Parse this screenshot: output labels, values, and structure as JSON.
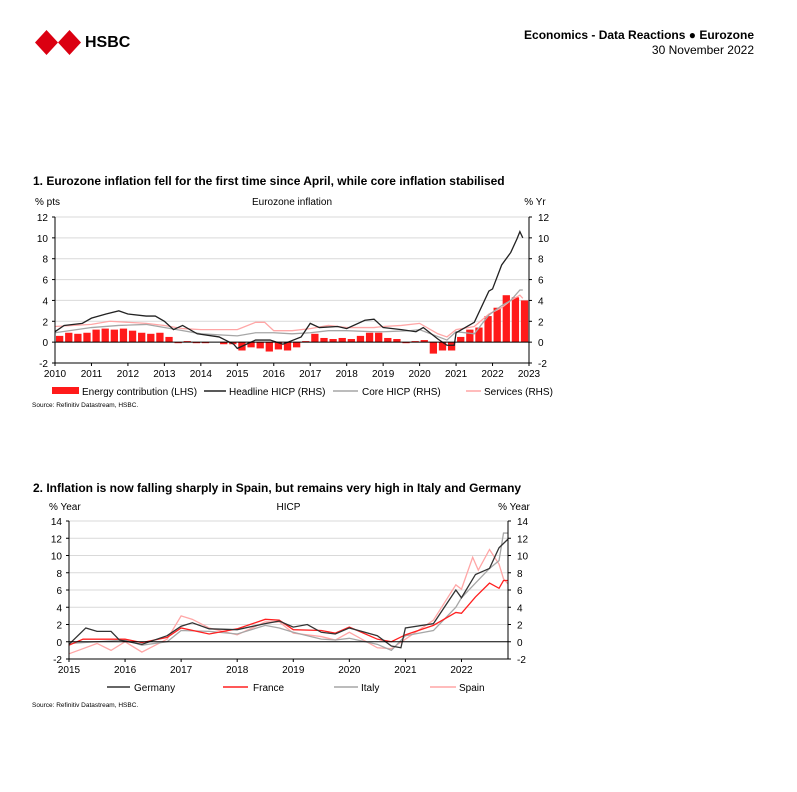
{
  "header": {
    "brand": "HSBC",
    "line1": "Economics - Data Reactions ● Eurozone",
    "line2": "30 November 2022"
  },
  "colors": {
    "red": "#ff1a1a",
    "black": "#222222",
    "grey": "#a6a6a6",
    "pink": "#ffa6a6",
    "grid": "#d9d9d9"
  },
  "chart1": {
    "title": "1. Eurozone inflation fell for the first time since April, while core inflation stabilised",
    "source": "Source: Refinitiv Datastream, HSBC.",
    "chart_data": {
      "type": "bar+line",
      "title": "Eurozone inflation",
      "ylabel_left": "% pts",
      "ylabel_right": "% Yr",
      "ylim": [
        -2,
        12
      ],
      "yticks": [
        -2,
        0,
        2,
        4,
        6,
        8,
        10,
        12
      ],
      "xlim": [
        2010,
        2023
      ],
      "xticks": [
        2010,
        2011,
        2012,
        2013,
        2014,
        2015,
        2016,
        2017,
        2018,
        2019,
        2020,
        2021,
        2022,
        2023
      ],
      "legend": [
        "Energy contribution (LHS)",
        "Headline HICP (RHS)",
        "Core HICP (RHS)",
        "Services (RHS)"
      ],
      "bars": {
        "name": "Energy contribution (LHS)",
        "x_start": 2010,
        "x_step": 0.25,
        "values": [
          0.6,
          0.9,
          0.8,
          0.9,
          1.2,
          1.3,
          1.2,
          1.3,
          1.1,
          0.9,
          0.8,
          0.9,
          0.5,
          -0.1,
          0.1,
          -0.1,
          -0.1,
          0.0,
          -0.2,
          -0.2,
          -0.8,
          -0.5,
          -0.6,
          -0.9,
          -0.7,
          -0.8,
          -0.5,
          0.1,
          0.8,
          0.4,
          0.3,
          0.4,
          0.3,
          0.6,
          0.9,
          0.9,
          0.4,
          0.3,
          -0.1,
          0.1,
          0.2,
          -1.1,
          -0.8,
          -0.8,
          0.5,
          1.2,
          1.4,
          2.5,
          3.3,
          4.5,
          4.3,
          4.0
        ]
      },
      "series": [
        {
          "name": "Headline HICP (RHS)",
          "color": "#222222",
          "points": [
            [
              2010,
              1.0
            ],
            [
              2010.25,
              1.6
            ],
            [
              2010.75,
              1.8
            ],
            [
              2011,
              2.3
            ],
            [
              2011.4,
              2.7
            ],
            [
              2011.75,
              3.0
            ],
            [
              2012,
              2.7
            ],
            [
              2012.5,
              2.5
            ],
            [
              2012.75,
              2.5
            ],
            [
              2013,
              2.0
            ],
            [
              2013.25,
              1.2
            ],
            [
              2013.5,
              1.6
            ],
            [
              2013.9,
              0.8
            ],
            [
              2014.5,
              0.5
            ],
            [
              2014.9,
              -0.2
            ],
            [
              2015,
              -0.6
            ],
            [
              2015.5,
              0.2
            ],
            [
              2015.9,
              0.2
            ],
            [
              2016.25,
              -0.2
            ],
            [
              2016.75,
              0.5
            ],
            [
              2017,
              1.8
            ],
            [
              2017.25,
              1.4
            ],
            [
              2017.75,
              1.5
            ],
            [
              2018,
              1.3
            ],
            [
              2018.5,
              2.1
            ],
            [
              2018.75,
              2.2
            ],
            [
              2019,
              1.4
            ],
            [
              2019.5,
              1.2
            ],
            [
              2019.9,
              1.0
            ],
            [
              2020.1,
              1.4
            ],
            [
              2020.5,
              0.3
            ],
            [
              2020.75,
              -0.3
            ],
            [
              2020.95,
              -0.3
            ],
            [
              2021,
              0.9
            ],
            [
              2021.5,
              1.9
            ],
            [
              2021.9,
              4.9
            ],
            [
              2022,
              5.1
            ],
            [
              2022.25,
              7.4
            ],
            [
              2022.5,
              8.6
            ],
            [
              2022.67,
              9.9
            ],
            [
              2022.75,
              10.6
            ],
            [
              2022.83,
              10.0
            ]
          ]
        },
        {
          "name": "Core HICP (RHS)",
          "color": "#a6a6a6",
          "points": [
            [
              2010,
              0.9
            ],
            [
              2011,
              1.4
            ],
            [
              2011.75,
              1.6
            ],
            [
              2012.5,
              1.7
            ],
            [
              2013,
              1.4
            ],
            [
              2013.5,
              1.1
            ],
            [
              2014,
              0.8
            ],
            [
              2015,
              0.6
            ],
            [
              2015.5,
              0.9
            ],
            [
              2016,
              0.9
            ],
            [
              2016.5,
              0.8
            ],
            [
              2017,
              0.9
            ],
            [
              2017.5,
              1.1
            ],
            [
              2018,
              1.1
            ],
            [
              2018.75,
              1.0
            ],
            [
              2019,
              1.0
            ],
            [
              2019.75,
              1.1
            ],
            [
              2020,
              1.2
            ],
            [
              2020.75,
              0.2
            ],
            [
              2021,
              1.0
            ],
            [
              2021.5,
              0.8
            ],
            [
              2021.9,
              2.6
            ],
            [
              2022.25,
              3.5
            ],
            [
              2022.5,
              4.0
            ],
            [
              2022.75,
              5.0
            ],
            [
              2022.83,
              5.0
            ]
          ]
        },
        {
          "name": "Services (RHS)",
          "color": "#ffa6a6",
          "points": [
            [
              2010,
              1.5
            ],
            [
              2011,
              1.7
            ],
            [
              2011.5,
              2.0
            ],
            [
              2012.5,
              1.8
            ],
            [
              2013,
              1.6
            ],
            [
              2013.5,
              1.3
            ],
            [
              2014,
              1.2
            ],
            [
              2015,
              1.2
            ],
            [
              2015.5,
              1.9
            ],
            [
              2015.75,
              1.9
            ],
            [
              2016,
              1.1
            ],
            [
              2016.5,
              1.1
            ],
            [
              2017,
              1.3
            ],
            [
              2017.5,
              1.6
            ],
            [
              2018,
              1.4
            ],
            [
              2018.75,
              1.4
            ],
            [
              2019,
              1.5
            ],
            [
              2019.5,
              1.6
            ],
            [
              2020,
              1.8
            ],
            [
              2020.5,
              0.8
            ],
            [
              2020.75,
              0.5
            ],
            [
              2021,
              1.2
            ],
            [
              2021.5,
              1.5
            ],
            [
              2021.9,
              2.7
            ],
            [
              2022.25,
              3.3
            ],
            [
              2022.5,
              4.0
            ],
            [
              2022.75,
              4.5
            ],
            [
              2022.83,
              4.2
            ]
          ]
        }
      ]
    }
  },
  "chart2": {
    "title": "2. Inflation is now falling sharply in Spain, but remains very high in Italy and Germany",
    "source": "Source: Refinitiv Datastream, HSBC.",
    "chart_data": {
      "type": "line",
      "title": "HICP",
      "ylabel_left": "% Year",
      "ylabel_right": "% Year",
      "ylim": [
        -2,
        14
      ],
      "yticks": [
        -2,
        0,
        2,
        4,
        6,
        8,
        10,
        12,
        14
      ],
      "xlim": [
        2015,
        2022.83
      ],
      "xticks": [
        2015,
        2016,
        2017,
        2018,
        2019,
        2020,
        2021,
        2022
      ],
      "legend": [
        "Germany",
        "France",
        "Italy",
        "Spain"
      ],
      "series": [
        {
          "name": "Germany",
          "color": "#333333",
          "points": [
            [
              2015,
              -0.3
            ],
            [
              2015.3,
              1.6
            ],
            [
              2015.5,
              1.2
            ],
            [
              2015.75,
              1.2
            ],
            [
              2015.9,
              0.2
            ],
            [
              2016.3,
              -0.3
            ],
            [
              2016.75,
              0.7
            ],
            [
              2017,
              1.8
            ],
            [
              2017.2,
              2.2
            ],
            [
              2017.5,
              1.5
            ],
            [
              2018,
              1.4
            ],
            [
              2018.5,
              2.1
            ],
            [
              2018.75,
              2.4
            ],
            [
              2019,
              1.7
            ],
            [
              2019.25,
              2.0
            ],
            [
              2019.5,
              1.1
            ],
            [
              2019.75,
              0.9
            ],
            [
              2020,
              1.6
            ],
            [
              2020.5,
              0.7
            ],
            [
              2020.75,
              -0.5
            ],
            [
              2020.92,
              -0.7
            ],
            [
              2021,
              1.6
            ],
            [
              2021.5,
              2.1
            ],
            [
              2021.9,
              6.0
            ],
            [
              2022,
              5.1
            ],
            [
              2022.25,
              7.8
            ],
            [
              2022.5,
              8.5
            ],
            [
              2022.67,
              10.9
            ],
            [
              2022.83,
              11.9
            ]
          ]
        },
        {
          "name": "France",
          "color": "#ff2020",
          "points": [
            [
              2015,
              -0.4
            ],
            [
              2015.25,
              0.3
            ],
            [
              2016,
              0.3
            ],
            [
              2016.3,
              -0.1
            ],
            [
              2016.75,
              0.5
            ],
            [
              2017,
              1.6
            ],
            [
              2017.5,
              0.9
            ],
            [
              2018,
              1.5
            ],
            [
              2018.5,
              2.6
            ],
            [
              2018.75,
              2.5
            ],
            [
              2019,
              1.4
            ],
            [
              2019.5,
              1.3
            ],
            [
              2019.75,
              1.0
            ],
            [
              2020,
              1.7
            ],
            [
              2020.5,
              0.3
            ],
            [
              2020.75,
              0.0
            ],
            [
              2021,
              0.8
            ],
            [
              2021.5,
              1.9
            ],
            [
              2021.9,
              3.4
            ],
            [
              2022,
              3.3
            ],
            [
              2022.25,
              5.2
            ],
            [
              2022.5,
              6.8
            ],
            [
              2022.67,
              6.2
            ],
            [
              2022.75,
              7.1
            ],
            [
              2022.83,
              7.1
            ]
          ]
        },
        {
          "name": "Italy",
          "color": "#a6a6a6",
          "points": [
            [
              2015,
              -0.2
            ],
            [
              2016,
              0.2
            ],
            [
              2016.3,
              -0.4
            ],
            [
              2016.75,
              0.0
            ],
            [
              2017,
              1.3
            ],
            [
              2017.5,
              1.2
            ],
            [
              2018,
              0.9
            ],
            [
              2018.5,
              1.9
            ],
            [
              2018.75,
              1.6
            ],
            [
              2019,
              1.1
            ],
            [
              2019.5,
              0.3
            ],
            [
              2019.75,
              0.2
            ],
            [
              2020,
              0.4
            ],
            [
              2020.5,
              -0.3
            ],
            [
              2020.75,
              -1.0
            ],
            [
              2021,
              0.7
            ],
            [
              2021.5,
              1.3
            ],
            [
              2021.9,
              4.0
            ],
            [
              2022,
              5.1
            ],
            [
              2022.25,
              6.8
            ],
            [
              2022.5,
              8.5
            ],
            [
              2022.67,
              9.4
            ],
            [
              2022.75,
              12.6
            ],
            [
              2022.83,
              12.6
            ]
          ]
        },
        {
          "name": "Spain",
          "color": "#ffa6a6",
          "points": [
            [
              2015,
              -1.4
            ],
            [
              2015.5,
              -0.2
            ],
            [
              2015.75,
              -1.0
            ],
            [
              2016,
              0.0
            ],
            [
              2016.3,
              -1.2
            ],
            [
              2016.75,
              0.3
            ],
            [
              2017,
              3.0
            ],
            [
              2017.2,
              2.6
            ],
            [
              2017.5,
              1.6
            ],
            [
              2018,
              0.8
            ],
            [
              2018.5,
              2.3
            ],
            [
              2018.75,
              2.3
            ],
            [
              2019,
              1.0
            ],
            [
              2019.5,
              0.6
            ],
            [
              2019.75,
              0.2
            ],
            [
              2020,
              1.1
            ],
            [
              2020.5,
              -0.7
            ],
            [
              2020.75,
              -0.8
            ],
            [
              2021,
              0.3
            ],
            [
              2021.5,
              2.5
            ],
            [
              2021.9,
              6.6
            ],
            [
              2022,
              6.1
            ],
            [
              2022.2,
              9.8
            ],
            [
              2022.3,
              8.3
            ],
            [
              2022.5,
              10.7
            ],
            [
              2022.67,
              9.0
            ],
            [
              2022.75,
              7.3
            ],
            [
              2022.83,
              6.7
            ]
          ]
        }
      ]
    }
  }
}
